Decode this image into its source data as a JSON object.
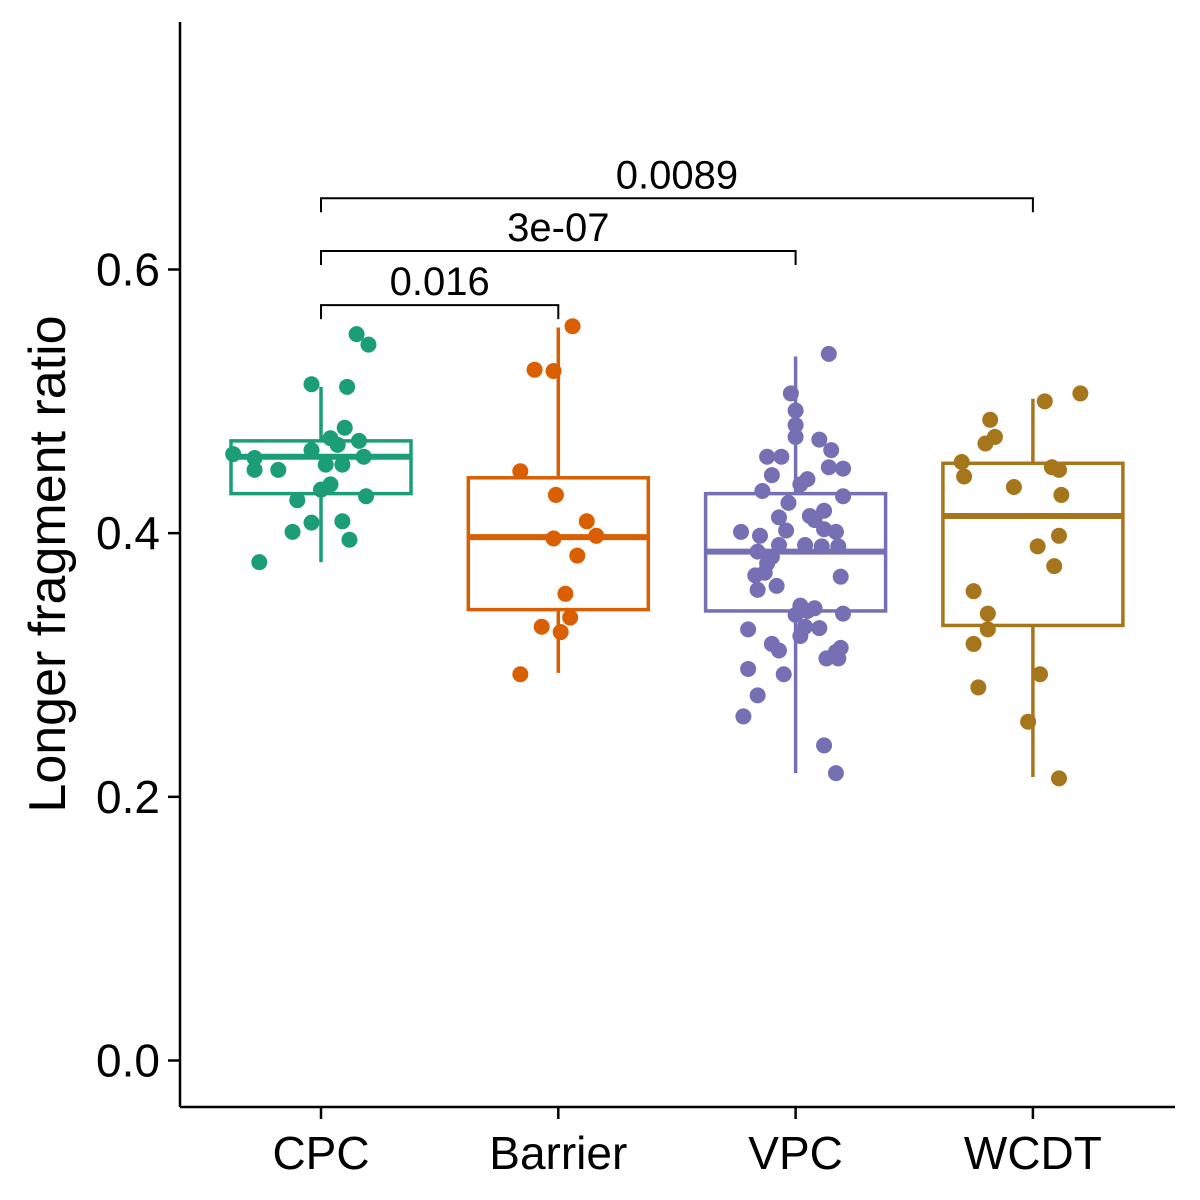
{
  "chart_data": {
    "type": "box",
    "title": "",
    "xlabel": "",
    "ylabel": "Longer fragment ratio",
    "ylim": [
      -0.035,
      0.79
    ],
    "yticks": [
      0.0,
      0.2,
      0.4,
      0.6
    ],
    "ytick_labels": [
      "0.0",
      "0.2",
      "0.4",
      "0.6"
    ],
    "grid": false,
    "legend": "none",
    "categories": [
      "CPC",
      "Barrier",
      "VPC",
      "WCDT"
    ],
    "colors": [
      "#1b9e77",
      "#d95f02",
      "#7570b3",
      "#a6761d"
    ],
    "boxes": [
      {
        "group": "CPC",
        "min": 0.378,
        "q1": 0.43,
        "median": 0.458,
        "q3": 0.47,
        "max": 0.511
      },
      {
        "group": "Barrier",
        "min": 0.294,
        "q1": 0.342,
        "median": 0.397,
        "q3": 0.442,
        "max": 0.556
      },
      {
        "group": "VPC",
        "min": 0.218,
        "q1": 0.341,
        "median": 0.386,
        "q3": 0.43,
        "max": 0.534
      },
      {
        "group": "WCDT",
        "min": 0.215,
        "q1": 0.33,
        "median": 0.413,
        "q3": 0.453,
        "max": 0.502
      }
    ],
    "points": {
      "CPC": [
        {
          "x": 0.74,
          "y": 0.378
        },
        {
          "x": 0.88,
          "y": 0.401
        },
        {
          "x": 0.96,
          "y": 0.408
        },
        {
          "x": 1.12,
          "y": 0.395
        },
        {
          "x": 1.09,
          "y": 0.409
        },
        {
          "x": 0.9,
          "y": 0.425
        },
        {
          "x": 1.19,
          "y": 0.428
        },
        {
          "x": 1.0,
          "y": 0.433
        },
        {
          "x": 1.04,
          "y": 0.437
        },
        {
          "x": 0.72,
          "y": 0.448
        },
        {
          "x": 0.82,
          "y": 0.448
        },
        {
          "x": 1.02,
          "y": 0.452
        },
        {
          "x": 1.09,
          "y": 0.452
        },
        {
          "x": 1.18,
          "y": 0.458
        },
        {
          "x": 0.72,
          "y": 0.457
        },
        {
          "x": 0.63,
          "y": 0.46
        },
        {
          "x": 0.96,
          "y": 0.463
        },
        {
          "x": 1.07,
          "y": 0.467
        },
        {
          "x": 1.16,
          "y": 0.47
        },
        {
          "x": 1.04,
          "y": 0.472
        },
        {
          "x": 1.1,
          "y": 0.48
        },
        {
          "x": 0.96,
          "y": 0.513
        },
        {
          "x": 1.11,
          "y": 0.511
        },
        {
          "x": 1.2,
          "y": 0.543
        },
        {
          "x": 1.15,
          "y": 0.551
        }
      ],
      "Barrier": [
        {
          "x": 1.84,
          "y": 0.293
        },
        {
          "x": 2.01,
          "y": 0.325
        },
        {
          "x": 1.93,
          "y": 0.329
        },
        {
          "x": 2.05,
          "y": 0.336
        },
        {
          "x": 2.03,
          "y": 0.354
        },
        {
          "x": 2.08,
          "y": 0.383
        },
        {
          "x": 1.98,
          "y": 0.396
        },
        {
          "x": 2.16,
          "y": 0.398
        },
        {
          "x": 2.12,
          "y": 0.409
        },
        {
          "x": 1.99,
          "y": 0.429
        },
        {
          "x": 1.84,
          "y": 0.447
        },
        {
          "x": 1.9,
          "y": 0.524
        },
        {
          "x": 1.98,
          "y": 0.523
        },
        {
          "x": 2.06,
          "y": 0.557
        }
      ],
      "VPC": [
        {
          "x": 3.17,
          "y": 0.218
        },
        {
          "x": 3.12,
          "y": 0.239
        },
        {
          "x": 2.78,
          "y": 0.261
        },
        {
          "x": 2.84,
          "y": 0.277
        },
        {
          "x": 2.95,
          "y": 0.293
        },
        {
          "x": 2.8,
          "y": 0.297
        },
        {
          "x": 2.9,
          "y": 0.316
        },
        {
          "x": 2.93,
          "y": 0.311
        },
        {
          "x": 3.18,
          "y": 0.305
        },
        {
          "x": 3.17,
          "y": 0.31
        },
        {
          "x": 3.13,
          "y": 0.305
        },
        {
          "x": 3.19,
          "y": 0.313
        },
        {
          "x": 3.02,
          "y": 0.322
        },
        {
          "x": 3.04,
          "y": 0.329
        },
        {
          "x": 2.8,
          "y": 0.327
        },
        {
          "x": 3.1,
          "y": 0.328
        },
        {
          "x": 3.0,
          "y": 0.338
        },
        {
          "x": 3.05,
          "y": 0.341
        },
        {
          "x": 3.02,
          "y": 0.345
        },
        {
          "x": 3.08,
          "y": 0.343
        },
        {
          "x": 3.2,
          "y": 0.339
        },
        {
          "x": 2.84,
          "y": 0.357
        },
        {
          "x": 2.92,
          "y": 0.36
        },
        {
          "x": 2.83,
          "y": 0.368
        },
        {
          "x": 2.87,
          "y": 0.37
        },
        {
          "x": 3.19,
          "y": 0.367
        },
        {
          "x": 2.88,
          "y": 0.377
        },
        {
          "x": 2.9,
          "y": 0.382
        },
        {
          "x": 2.84,
          "y": 0.386
        },
        {
          "x": 2.93,
          "y": 0.391
        },
        {
          "x": 3.04,
          "y": 0.391
        },
        {
          "x": 3.11,
          "y": 0.39
        },
        {
          "x": 3.18,
          "y": 0.39
        },
        {
          "x": 2.77,
          "y": 0.401
        },
        {
          "x": 2.85,
          "y": 0.398
        },
        {
          "x": 2.96,
          "y": 0.402
        },
        {
          "x": 3.12,
          "y": 0.403
        },
        {
          "x": 3.17,
          "y": 0.401
        },
        {
          "x": 2.93,
          "y": 0.412
        },
        {
          "x": 3.08,
          "y": 0.41
        },
        {
          "x": 3.12,
          "y": 0.417
        },
        {
          "x": 3.06,
          "y": 0.413
        },
        {
          "x": 2.97,
          "y": 0.423
        },
        {
          "x": 2.86,
          "y": 0.432
        },
        {
          "x": 3.2,
          "y": 0.428
        },
        {
          "x": 3.02,
          "y": 0.437
        },
        {
          "x": 3.05,
          "y": 0.441
        },
        {
          "x": 2.9,
          "y": 0.444
        },
        {
          "x": 3.14,
          "y": 0.45
        },
        {
          "x": 3.2,
          "y": 0.449
        },
        {
          "x": 2.88,
          "y": 0.458
        },
        {
          "x": 2.94,
          "y": 0.458
        },
        {
          "x": 3.15,
          "y": 0.463
        },
        {
          "x": 3.1,
          "y": 0.471
        },
        {
          "x": 3.0,
          "y": 0.473
        },
        {
          "x": 3.0,
          "y": 0.482
        },
        {
          "x": 3.0,
          "y": 0.493
        },
        {
          "x": 2.98,
          "y": 0.506
        },
        {
          "x": 3.14,
          "y": 0.536
        }
      ],
      "WCDT": [
        {
          "x": 4.11,
          "y": 0.214
        },
        {
          "x": 3.98,
          "y": 0.257
        },
        {
          "x": 3.77,
          "y": 0.283
        },
        {
          "x": 4.03,
          "y": 0.293
        },
        {
          "x": 3.75,
          "y": 0.316
        },
        {
          "x": 3.81,
          "y": 0.327
        },
        {
          "x": 3.81,
          "y": 0.339
        },
        {
          "x": 3.75,
          "y": 0.356
        },
        {
          "x": 4.09,
          "y": 0.375
        },
        {
          "x": 4.02,
          "y": 0.39
        },
        {
          "x": 4.11,
          "y": 0.398
        },
        {
          "x": 4.12,
          "y": 0.429
        },
        {
          "x": 3.92,
          "y": 0.435
        },
        {
          "x": 3.71,
          "y": 0.443
        },
        {
          "x": 3.7,
          "y": 0.454
        },
        {
          "x": 4.11,
          "y": 0.448
        },
        {
          "x": 4.08,
          "y": 0.45
        },
        {
          "x": 3.8,
          "y": 0.468
        },
        {
          "x": 3.84,
          "y": 0.473
        },
        {
          "x": 3.82,
          "y": 0.486
        },
        {
          "x": 4.05,
          "y": 0.5
        },
        {
          "x": 4.2,
          "y": 0.506
        }
      ]
    },
    "comparisons": [
      {
        "group1": "CPC",
        "group2": "Barrier",
        "label": "0.016",
        "y": 0.573
      },
      {
        "group1": "CPC",
        "group2": "VPC",
        "label": "3e-07",
        "y": 0.614
      },
      {
        "group1": "CPC",
        "group2": "WCDT",
        "label": "0.0089",
        "y": 0.654
      }
    ]
  }
}
